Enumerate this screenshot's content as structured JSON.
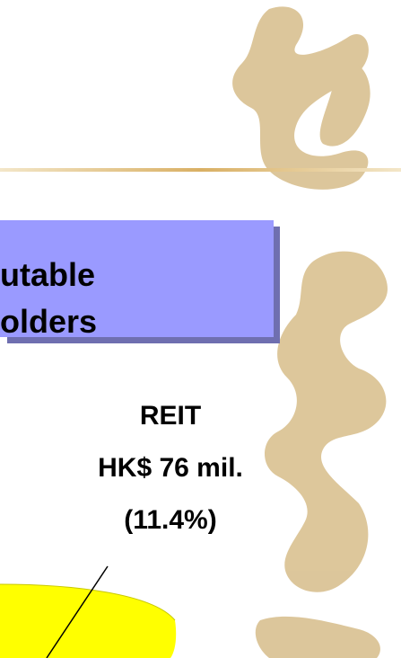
{
  "heading": {
    "lines": [
      "utable",
      "olders"
    ]
  },
  "label": {
    "lines": [
      "REIT",
      "HK$ 76 mil.",
      "(11.4%)"
    ]
  }
}
